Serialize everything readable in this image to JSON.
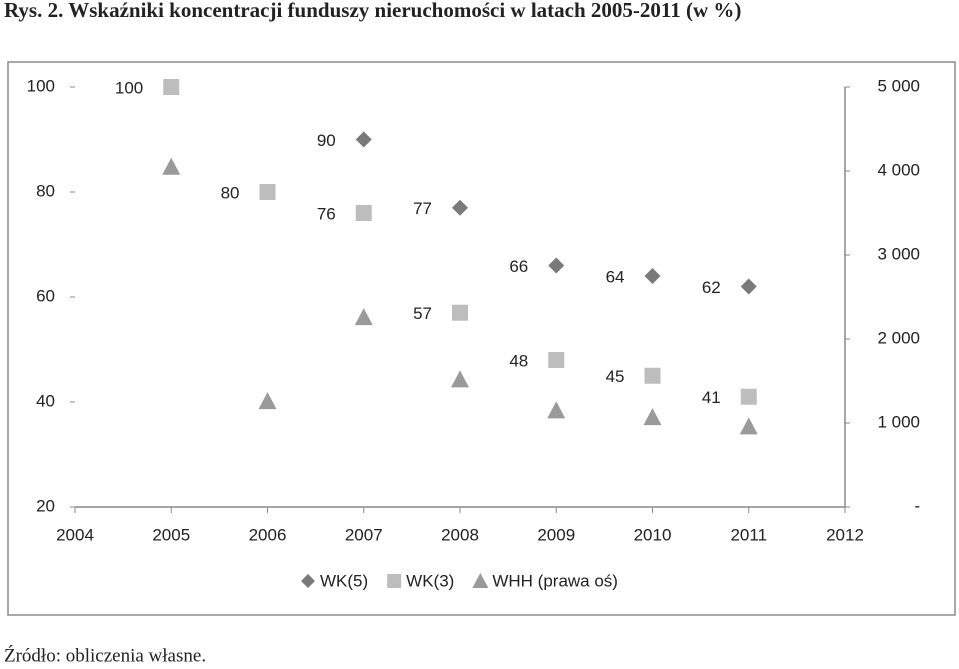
{
  "header": {
    "title": "Rys. 2. Wskaźniki koncentracji funduszy nieruchomości w latach 2005-2011 (w %)"
  },
  "chart_data": {
    "type": "scatter",
    "x": [
      2005,
      2006,
      2007,
      2008,
      2009,
      2010,
      2011
    ],
    "xlim": [
      2004,
      2012
    ],
    "xticks": [
      2004,
      2005,
      2006,
      2007,
      2008,
      2009,
      2010,
      2011,
      2012
    ],
    "ylim": [
      20,
      100
    ],
    "yticks": [
      20,
      40,
      60,
      80,
      100
    ],
    "y2lim": [
      0,
      5000
    ],
    "y2ticks": [
      {
        "value": 0,
        "label": "-"
      },
      {
        "value": 1000,
        "label": "1 000"
      },
      {
        "value": 2000,
        "label": "2 000"
      },
      {
        "value": 3000,
        "label": "3 000"
      },
      {
        "value": 4000,
        "label": "4 000"
      },
      {
        "value": 5000,
        "label": "5 000"
      }
    ],
    "legend": "bottom",
    "series": [
      {
        "name": "WK(5)",
        "color": "#7a7a7a",
        "marker": "diamond",
        "values": [
          null,
          null,
          90,
          77,
          66,
          64,
          62
        ],
        "data_labels": true
      },
      {
        "name": "WK(3)",
        "color": "#bdbdbd",
        "marker": "square",
        "values": [
          100,
          80,
          76,
          57,
          48,
          45,
          41
        ],
        "data_labels": true
      },
      {
        "name": "WHH (prawa oś)",
        "color": "#9a9a9a",
        "marker": "triangle",
        "axis": "y2",
        "values": [
          4050,
          1260,
          2260,
          1520,
          1150,
          1070,
          960
        ],
        "data_labels": false
      }
    ]
  },
  "footer": {
    "source": "Źródło: obliczenia własne."
  }
}
